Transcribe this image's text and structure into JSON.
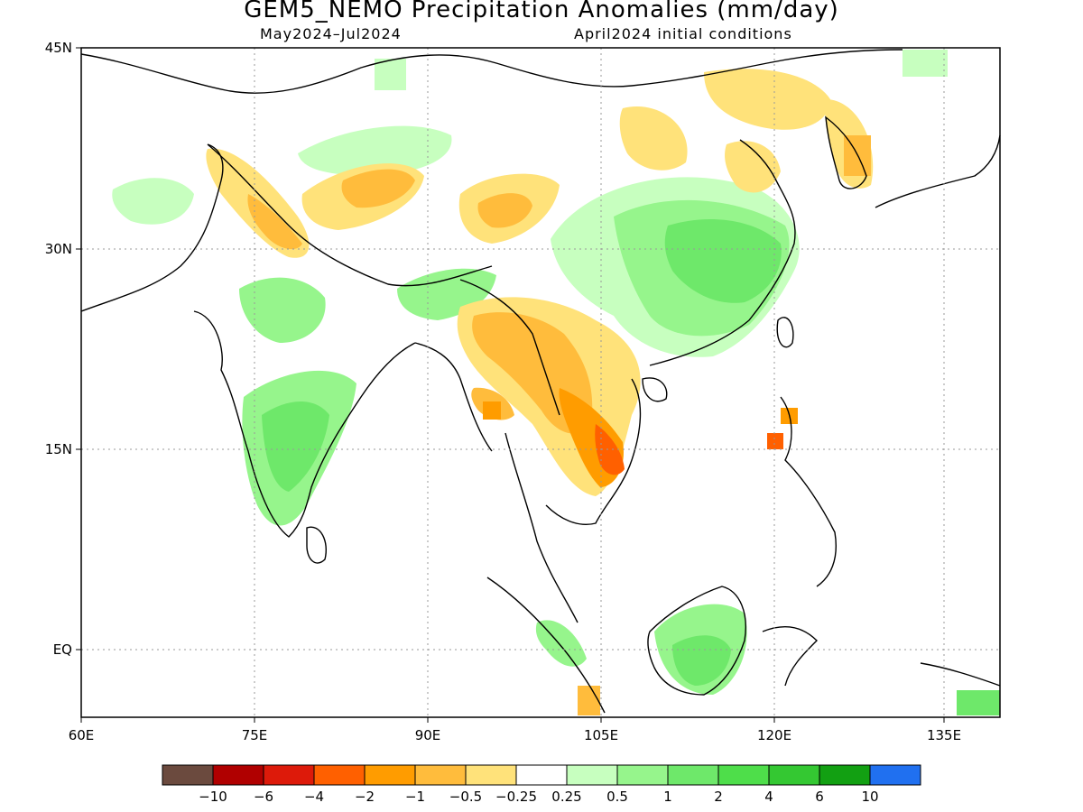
{
  "title": "GEM5_NEMO Precipitation Anomalies (mm/day)",
  "subtitle_left": "May2024–Jul2024",
  "subtitle_right": "April2024 initial conditions",
  "map": {
    "lon_range": [
      60,
      140
    ],
    "lat_range": [
      -5,
      45
    ],
    "lon_ticks": [
      "60E",
      "75E",
      "90E",
      "105E",
      "120E",
      "135E"
    ],
    "lat_ticks": [
      "45N",
      "30N",
      "15N",
      "EQ"
    ],
    "grid": "dotted"
  },
  "colorbar": {
    "colors": [
      "#6b4a3e",
      "#b00000",
      "#dd1a0a",
      "#ff6000",
      "#ff9c00",
      "#ffbc3c",
      "#ffe27a",
      "#ffffff",
      "#c7ffbf",
      "#96f58c",
      "#6ee86a",
      "#4ede4a",
      "#34c832",
      "#12a012",
      "#2070f0"
    ],
    "labels": [
      "−10",
      "−6",
      "−4",
      "−2",
      "−1",
      "−0.5",
      "−0.25",
      "0.25",
      "0.5",
      "1",
      "2",
      "4",
      "6",
      "10"
    ]
  }
}
